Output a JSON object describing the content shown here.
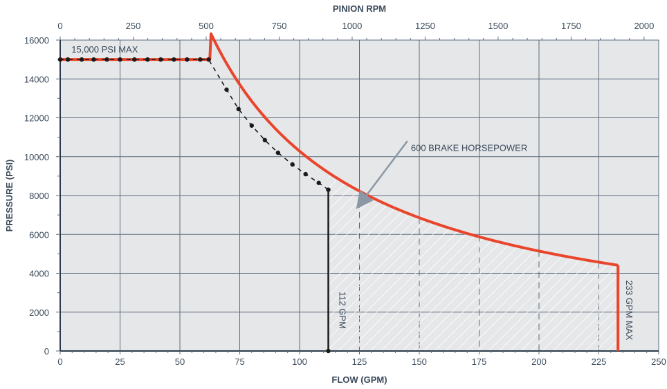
{
  "chart_data": {
    "type": "line",
    "top_axis_title": "PINION RPM",
    "xlabel": "FLOW (GPM)",
    "ylabel": "PRESSURE (PSI)",
    "xlim": [
      0,
      250
    ],
    "ylim": [
      0,
      16000
    ],
    "rpm_lim": [
      0,
      2050
    ],
    "x_ticks": [
      "0",
      "25",
      "50",
      "75",
      "100",
      "125",
      "150",
      "175",
      "200",
      "225",
      "250"
    ],
    "y_ticks": [
      "0",
      "2000",
      "4000",
      "6000",
      "8000",
      "10000",
      "12000",
      "14000",
      "16000"
    ],
    "rpm_ticks": [
      "0",
      "250",
      "500",
      "750",
      "1000",
      "1250",
      "1500",
      "1750",
      "2000"
    ],
    "grid": true,
    "colors": {
      "background": "#e6e7e9",
      "grid": "#5b6b7b",
      "curve": "#e8452c",
      "markers": "#1a1a1a",
      "text": "#3a4a5a",
      "hatch": "#ffffff",
      "callout": "#8a97a4"
    },
    "series": [
      {
        "marker_points": [
          [
            0,
            15000
          ],
          [
            3.2,
            15000
          ],
          [
            9,
            15000
          ],
          [
            14,
            15000
          ],
          [
            19.5,
            15000
          ],
          [
            25,
            15000
          ],
          [
            31,
            15000
          ],
          [
            36.5,
            15000
          ],
          [
            42,
            15000
          ],
          [
            47.5,
            15000
          ],
          [
            53,
            15000
          ],
          [
            58.5,
            15000
          ],
          [
            62,
            15000
          ],
          [
            69.5,
            13450
          ],
          [
            74.5,
            12450
          ],
          [
            80,
            11600
          ],
          [
            85.5,
            10850
          ],
          [
            91,
            10200
          ],
          [
            97,
            9600
          ],
          [
            102.5,
            9100
          ],
          [
            108,
            8650
          ],
          [
            112,
            8300
          ]
        ],
        "curve_hp": 600,
        "curve_range": [
          62.5,
          233
        ]
      }
    ],
    "annotations": {
      "max_pressure": "15,000 PSI MAX",
      "hp_label": "600 BRAKE HORSEPOWER",
      "flow_112": "112 GPM",
      "flow_max": "233 GPM MAX"
    },
    "hatched_region": {
      "x_from": 112,
      "x_to": 233
    }
  }
}
